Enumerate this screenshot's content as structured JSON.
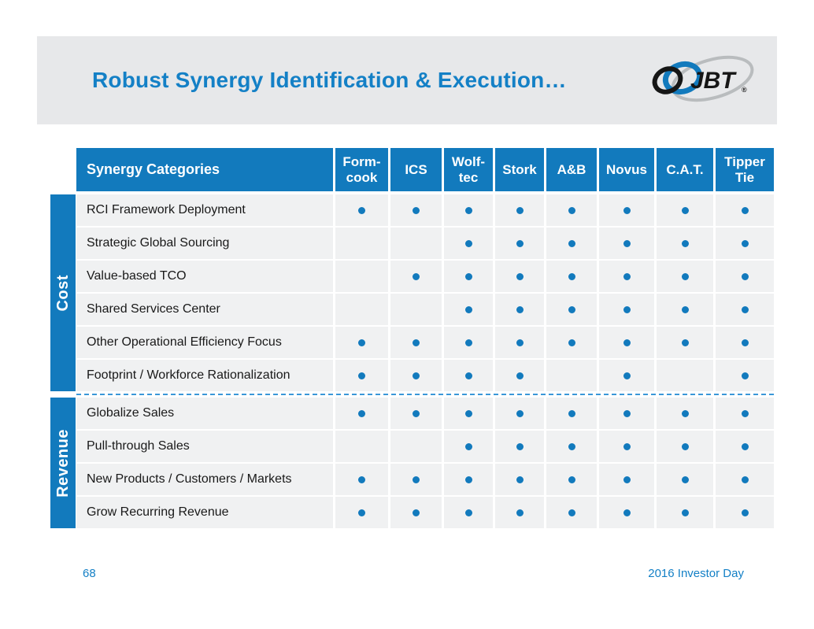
{
  "slide": {
    "title": "Robust Synergy Identification & Execution…",
    "page_number": "68",
    "footer_right": "2016 Investor Day"
  },
  "logo": {
    "text": "JBT",
    "mark": "®"
  },
  "table": {
    "header": [
      "Synergy Categories",
      "Form-cook",
      "ICS",
      "Wolf-tec",
      "Stork",
      "A&B",
      "Novus",
      "C.A.T.",
      "Tipper Tie"
    ],
    "groups": [
      {
        "label": "Cost",
        "rows": [
          {
            "category": "RCI Framework Deployment",
            "dots": [
              1,
              1,
              1,
              1,
              1,
              1,
              1,
              1
            ]
          },
          {
            "category": "Strategic Global Sourcing",
            "dots": [
              0,
              0,
              1,
              1,
              1,
              1,
              1,
              1
            ]
          },
          {
            "category": "Value-based TCO",
            "dots": [
              0,
              1,
              1,
              1,
              1,
              1,
              1,
              1
            ]
          },
          {
            "category": "Shared Services Center",
            "dots": [
              0,
              0,
              1,
              1,
              1,
              1,
              1,
              1
            ]
          },
          {
            "category": "Other Operational Efficiency Focus",
            "dots": [
              1,
              1,
              1,
              1,
              1,
              1,
              1,
              1
            ]
          },
          {
            "category": "Footprint / Workforce Rationalization",
            "dots": [
              1,
              1,
              1,
              1,
              0,
              1,
              0,
              1
            ]
          }
        ]
      },
      {
        "label": "Revenue",
        "rows": [
          {
            "category": "Globalize Sales",
            "dots": [
              1,
              1,
              1,
              1,
              1,
              1,
              1,
              1
            ]
          },
          {
            "category": "Pull-through Sales",
            "dots": [
              0,
              0,
              1,
              1,
              1,
              1,
              1,
              1
            ]
          },
          {
            "category": "New Products / Customers / Markets",
            "dots": [
              1,
              1,
              1,
              1,
              1,
              1,
              1,
              1
            ]
          },
          {
            "category": "Grow Recurring Revenue",
            "dots": [
              1,
              1,
              1,
              1,
              1,
              1,
              1,
              1
            ]
          }
        ]
      }
    ]
  },
  "colors": {
    "primary_blue": "#127abd",
    "title_blue": "#1480c6",
    "band_gray": "#e7e8ea",
    "row_gray": "#f0f1f2",
    "divider_blue": "#3a97d8",
    "logo_gray": "#b9bcbe",
    "logo_black": "#161616"
  }
}
